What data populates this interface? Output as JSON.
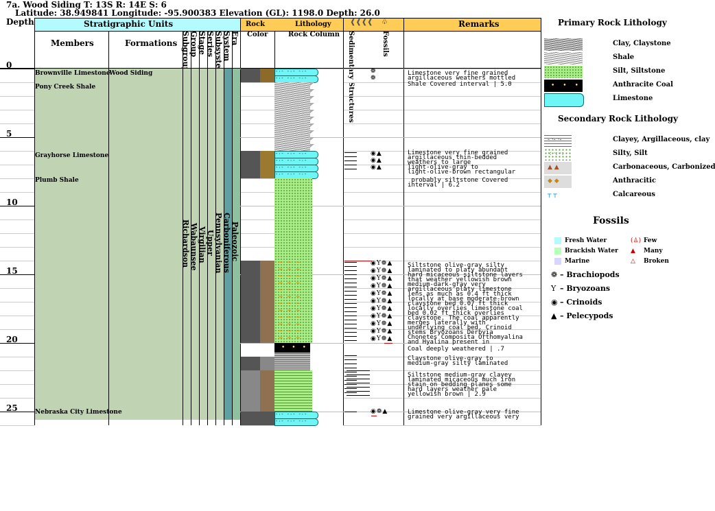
{
  "header": {
    "title": "7a. Wood Siding T: 13S R: 14E S: 6",
    "location": "Latitude: 38.949841 Longitude: -95.900383 Elevation (GL): 1198.0 Depth: 26.0"
  },
  "columns": {
    "depth": "Depth",
    "strat_units": "Stratigraphic Units",
    "members": "Members",
    "formations": "Formations",
    "subgroup": "Subgroup",
    "group": "Group",
    "stage": "Stage",
    "series": "Series",
    "subsystem": "Subsystem",
    "system": "System",
    "era": "Era",
    "rock_color_1": "Rock",
    "rock_color_2": "Color",
    "lithology": "Lithology",
    "rock_column": "Rock Column",
    "sed_struct": "Sedimentary Structures",
    "fossils": "Fossils",
    "remarks": "Remarks"
  },
  "depth_ticks": [
    "0",
    "5",
    "10",
    "15",
    "20",
    "25"
  ],
  "members": [
    {
      "name": "Brownville Limestone",
      "depth": 0.5
    },
    {
      "name": "Pony Creek Shale",
      "depth": 1.5
    },
    {
      "name": "Grayhorse Limestone",
      "depth": 6.5
    },
    {
      "name": "Plumb Shale",
      "depth": 8.3
    },
    {
      "name": "Nebraska City Limestone",
      "depth": 25.2
    }
  ],
  "formation": "Wood Siding",
  "vertical_units": {
    "subgroup": "Richardson",
    "group": "Wabaunsee",
    "stage": "Virgilian",
    "series": "Upper",
    "subsystem": "Pennsylvanian",
    "system": "Carboniferous",
    "era": "Paleozoic"
  },
  "remarks": [
    {
      "depth": 0.2,
      "text": "Limestone very fine grained\nargillaceous weathers mottled"
    },
    {
      "depth": 1.0,
      "text": "Shale Covered interval | 5.0"
    },
    {
      "depth": 6.0,
      "text": "Limestone very fine grained\nargillaceous thin-bedded\nweathers to large\nlight-olive-gray to\nlight-olive-brown rectangular"
    },
    {
      "depth": 8.0,
      "text": " probably siltstone Covered\ninterval | 6.2"
    },
    {
      "depth": 14.2,
      "text": "Siltstone olive-gray silty\nlaminated to platy abundant\nhard micaceous siltstone layers\nthat weather yellowish brown\nmedium-dark-gray very\nargillaceous platy limestone\nlens as much as 0.4 ft thick\nlocally at base moderate-brown\nclaystone bed 0.07 ft thick\nlocally overlies limestone coal\nbed 0.02 ft thick overlies\nclaystone. The coal apparently\nmerges laterally with\nunderlying coal bed. Crinoid\nstems Bryozoans Derbyia\nChonetes Composita Orthomyalina\nand Hyalina present in"
    },
    {
      "depth": 20.3,
      "text": "Coal deeply weathered | .7"
    },
    {
      "depth": 21.0,
      "text": "Claystone olive-gray to\nmedium-gray silty laminated"
    },
    {
      "depth": 22.2,
      "text": "Siltstone medium-gray clayey\nlaminated micaceous much iron\nstain on bedding planes some\nhard layers weather pale\nyellowish brown | 2.9"
    },
    {
      "depth": 24.9,
      "text": "Limestone olive-gray very fine\ngrained very argillaceous very"
    }
  ],
  "legend": {
    "primary_title": "Primary Rock Lithology",
    "primary": [
      "Clay, Claystone",
      "Shale",
      "Silt, Siltstone",
      "Anthracite Coal",
      "Limestone"
    ],
    "secondary_title": "Secondary Rock Lithology",
    "secondary": [
      "Clayey, Argillaceous, clay",
      "Silty, Silt",
      "Carbonaceous, Carbonized",
      "Anthracitic",
      "Calcareous"
    ],
    "fossils_title": "Fossils",
    "environments": [
      "Fresh Water",
      "Brackish Water",
      "Marine"
    ],
    "abundance": [
      "Few",
      "Many",
      "Broken"
    ],
    "types": [
      "– Brachiopods",
      "– Bryozoans",
      "– Crinoids",
      "– Pelecypods"
    ]
  },
  "colors": {
    "strat_header": "#b3fbff",
    "lith_header": "#ffcc55",
    "strat_fill": "#c0d4b4",
    "system_fill": "#5fa0a0",
    "era_fill": "#8fc0a0",
    "limestone": "#6ef6f6",
    "siltstone": "#aaee88",
    "rock_gray": "#555555",
    "rock_brown": "#9b7a3a"
  }
}
